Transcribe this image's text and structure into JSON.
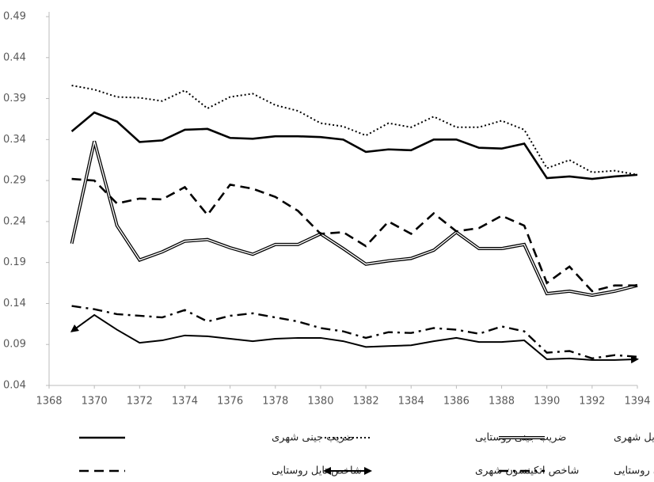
{
  "chart_data": {
    "type": "line",
    "x": [
      1369,
      1370,
      1371,
      1372,
      1373,
      1374,
      1375,
      1376,
      1377,
      1378,
      1379,
      1380,
      1381,
      1382,
      1383,
      1384,
      1385,
      1386,
      1387,
      1388,
      1389,
      1390,
      1391,
      1392,
      1393,
      1394
    ],
    "xlim": [
      1368,
      1394
    ],
    "xticks": [
      1368,
      1370,
      1372,
      1374,
      1376,
      1378,
      1380,
      1382,
      1384,
      1386,
      1388,
      1390,
      1392,
      1394
    ],
    "ylim": [
      0.04,
      0.49
    ],
    "yticks": [
      0.04,
      0.09,
      0.14,
      0.19,
      0.24,
      0.29,
      0.34,
      0.39,
      0.44,
      0.49
    ],
    "grid": false,
    "legend": "bottom",
    "series": [
      {
        "name": "ضریب جینی شهری",
        "color": "#000000",
        "style": "solid",
        "values": [
          0.35,
          0.373,
          0.362,
          0.337,
          0.339,
          0.352,
          0.353,
          0.342,
          0.341,
          0.344,
          0.344,
          0.343,
          0.34,
          0.325,
          0.328,
          0.327,
          0.34,
          0.34,
          0.33,
          0.329,
          0.335,
          0.293,
          0.295,
          0.292,
          0.295,
          0.297
        ]
      },
      {
        "name": "ضریب جینی روستایی",
        "color": "#000000",
        "style": "dotted",
        "values": [
          0.406,
          0.401,
          0.392,
          0.391,
          0.387,
          0.4,
          0.378,
          0.392,
          0.396,
          0.382,
          0.375,
          0.36,
          0.356,
          0.345,
          0.36,
          0.355,
          0.368,
          0.355,
          0.355,
          0.363,
          0.352,
          0.305,
          0.315,
          0.3,
          0.302,
          0.297
        ]
      },
      {
        "name": "شاخص تایل شهری",
        "color": "#000000",
        "style": "double",
        "values": [
          0.213,
          0.338,
          0.235,
          0.193,
          0.203,
          0.216,
          0.218,
          0.208,
          0.2,
          0.212,
          0.212,
          0.225,
          0.207,
          0.188,
          0.192,
          0.195,
          0.205,
          0.227,
          0.207,
          0.207,
          0.212,
          0.152,
          0.155,
          0.15,
          0.155,
          0.162
        ]
      },
      {
        "name": "شاخص تایل روستایی",
        "color": "#000000",
        "style": "dashed",
        "values": [
          0.292,
          0.29,
          0.262,
          0.268,
          0.267,
          0.282,
          0.248,
          0.285,
          0.28,
          0.27,
          0.253,
          0.225,
          0.227,
          0.21,
          0.24,
          0.225,
          0.25,
          0.228,
          0.232,
          0.247,
          0.235,
          0.165,
          0.185,
          0.155,
          0.162,
          0.162
        ]
      },
      {
        "name": "شاخص اتکینسون شهری",
        "color": "#000000",
        "style": "arrow",
        "values": [
          0.106,
          0.126,
          0.108,
          0.092,
          0.095,
          0.101,
          0.1,
          0.097,
          0.094,
          0.097,
          0.098,
          0.098,
          0.094,
          0.087,
          0.088,
          0.089,
          0.094,
          0.098,
          0.093,
          0.093,
          0.095,
          0.072,
          0.073,
          0.071,
          0.071,
          0.072
        ]
      },
      {
        "name": "شاخص اتکینسون روستایی",
        "color": "#000000",
        "style": "dashdot",
        "values": [
          0.137,
          0.133,
          0.127,
          0.125,
          0.123,
          0.132,
          0.118,
          0.125,
          0.128,
          0.123,
          0.118,
          0.11,
          0.106,
          0.098,
          0.105,
          0.104,
          0.11,
          0.108,
          0.103,
          0.112,
          0.106,
          0.08,
          0.082,
          0.073,
          0.077,
          0.075
        ]
      }
    ]
  }
}
